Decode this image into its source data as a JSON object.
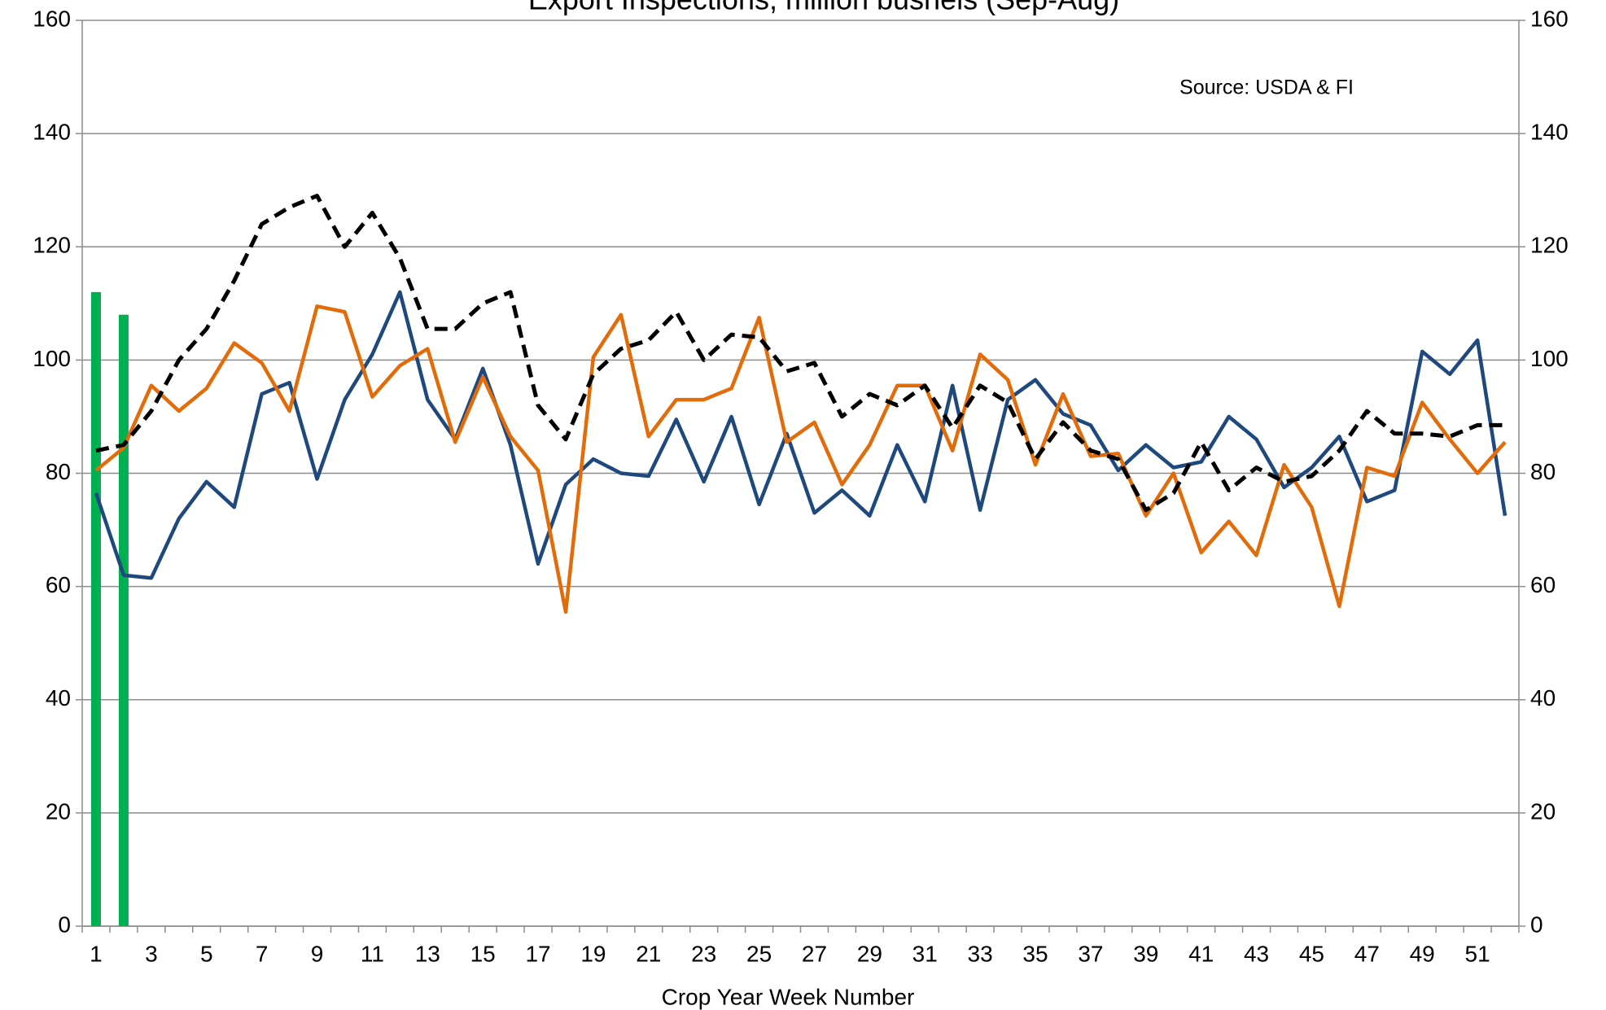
{
  "chart_data": {
    "type": "line",
    "title": "Export Inspections, million bushels (Sep-Aug)",
    "annotation": "Source: USDA & FI",
    "x_label": "Crop Year Week Number",
    "categories": [
      "1",
      null,
      "3",
      null,
      "5",
      null,
      "7",
      null,
      "9",
      null,
      "11",
      null,
      "13",
      null,
      "15",
      null,
      "17",
      null,
      "19",
      null,
      "21",
      null,
      "23",
      null,
      "25",
      null,
      "27",
      null,
      "29",
      null,
      "31",
      null,
      "33",
      null,
      "35",
      null,
      "37",
      null,
      "39",
      null,
      "41",
      null,
      "43",
      null,
      "45",
      null,
      "47",
      null,
      "49",
      null,
      "51",
      null
    ],
    "series": [
      {
        "type": "bar",
        "color": "#00b050",
        "values": [
          112,
          108,
          null,
          null,
          null,
          null,
          null,
          null,
          null,
          null,
          null,
          null,
          null,
          null,
          null,
          null,
          null,
          null,
          null,
          null,
          null,
          null,
          null,
          null,
          null,
          null,
          null,
          null,
          null,
          null,
          null,
          null,
          null,
          null,
          null,
          null,
          null,
          null,
          null,
          null,
          null,
          null,
          null,
          null,
          null,
          null,
          null,
          null,
          null,
          null,
          null,
          null
        ]
      },
      {
        "type": "line",
        "color": "#1f497d",
        "values": [
          76.5,
          62,
          61.5,
          72,
          78.5,
          74,
          94,
          96,
          79,
          93,
          101,
          112,
          93,
          86,
          98.5,
          85,
          64,
          78,
          82.5,
          80,
          79.5,
          89.5,
          78.5,
          90,
          74.5,
          87,
          73,
          77,
          72.5,
          85,
          75,
          95.5,
          73.5,
          93,
          96.5,
          90.5,
          88.5,
          80.5,
          85,
          81,
          82,
          90,
          86,
          77.5,
          81,
          86.5,
          75,
          77,
          101.5,
          97.5,
          103.5,
          72.5
        ]
      },
      {
        "type": "line",
        "color": "#e36c0a",
        "values": [
          80.5,
          84.5,
          95.5,
          91,
          95,
          103,
          99.5,
          91,
          109.5,
          108.5,
          93.5,
          99,
          102,
          85.5,
          97,
          86.5,
          80.5,
          55.5,
          100.5,
          108,
          86.5,
          93,
          93,
          95,
          107.5,
          85.5,
          89,
          78,
          85,
          95.5,
          95.5,
          84,
          101,
          96.5,
          81.5,
          94,
          83,
          83.5,
          72.5,
          80,
          66,
          71.5,
          65.5,
          81.5,
          74,
          56.5,
          81,
          79.5,
          92.5,
          86,
          80,
          85.5
        ]
      },
      {
        "type": "line",
        "color": "#000000",
        "dashed": true,
        "values": [
          84,
          85,
          91,
          100,
          105.5,
          114,
          124,
          127,
          129,
          120,
          126,
          118,
          105.5,
          105.5,
          110,
          112,
          92,
          86,
          97.5,
          102,
          103.5,
          108.5,
          100,
          104.5,
          104,
          98,
          99.5,
          90,
          94,
          92,
          95.5,
          88,
          95.5,
          92.5,
          82.5,
          89,
          84,
          82.5,
          73.5,
          76.5,
          85.5,
          77,
          81,
          78.5,
          79.5,
          84,
          91,
          87,
          87,
          86.5,
          88.5,
          88.5
        ]
      }
    ],
    "ylim": [
      0,
      160
    ],
    "yticks": [
      0,
      20,
      40,
      60,
      80,
      100,
      120,
      140,
      160
    ],
    "y2lim": [
      0,
      160
    ],
    "y2ticks": [
      0,
      20,
      40,
      60,
      80,
      100,
      120,
      140,
      160
    ],
    "grid": true
  }
}
